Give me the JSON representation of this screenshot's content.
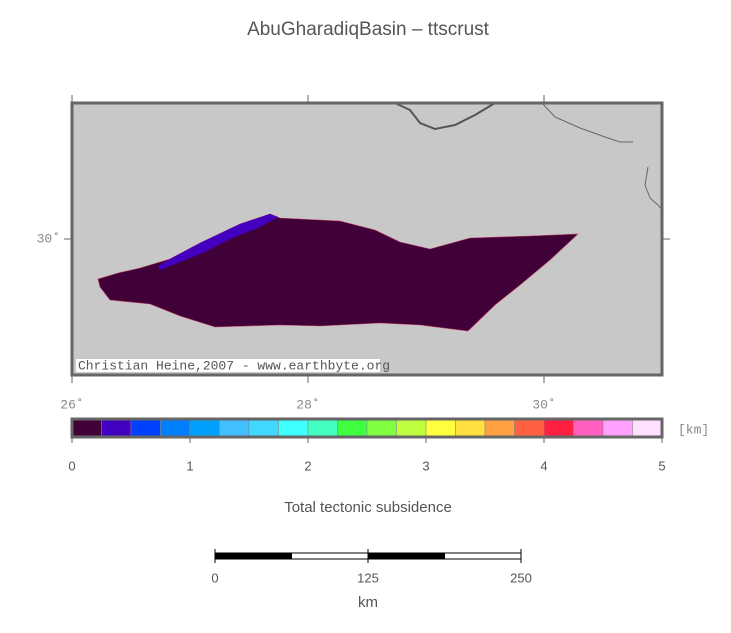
{
  "title": "AbuGharadiqBasin – ttscrust",
  "credit": "Christian Heine,2007 - www.earthbyte.org",
  "map": {
    "lonlim": [
      26,
      31
    ],
    "latlim": [
      29,
      31
    ],
    "lon_ticks": [
      {
        "value": 26,
        "label": "26˚"
      },
      {
        "value": 28,
        "label": "28˚"
      },
      {
        "value": 30,
        "label": "30˚"
      }
    ],
    "lat_ticks": [
      {
        "value": 30,
        "label": "30˚"
      }
    ]
  },
  "colorbar": {
    "label": "Total tectonic subsidence",
    "unit": "[km]",
    "lim": [
      0,
      5
    ],
    "ticks": [
      0,
      1,
      2,
      3,
      4,
      5
    ],
    "colors": [
      "#400038",
      "#4400c0",
      "#0040ff",
      "#0080ff",
      "#00a0ff",
      "#40c0ff",
      "#40d8ff",
      "#40ffff",
      "#40ffc0",
      "#40ff40",
      "#80ff40",
      "#c0ff40",
      "#ffff40",
      "#ffe040",
      "#ffa040",
      "#ff6040",
      "#ff2040",
      "#ff60c0",
      "#ffa0ff",
      "#ffe0ff"
    ]
  },
  "scalebar": {
    "lim": [
      0,
      250
    ],
    "ticks": [
      0,
      125,
      250
    ],
    "unit": "km"
  }
}
